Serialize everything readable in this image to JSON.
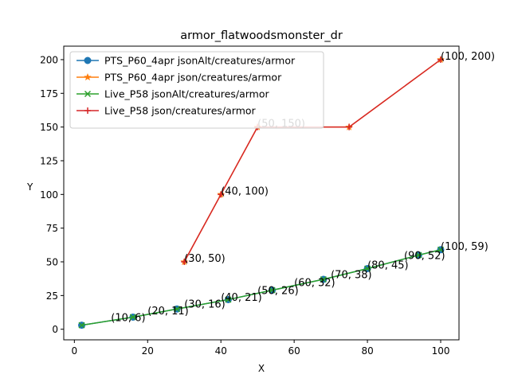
{
  "chart_data": {
    "type": "line",
    "title": "armor_flatwoodsmonster_dr",
    "xlabel": "X",
    "ylabel": "Y",
    "xlim": [
      -2.9,
      105
    ],
    "ylim": [
      -7.85,
      210
    ],
    "xticks": [
      0,
      20,
      40,
      60,
      80,
      100
    ],
    "yticks": [
      0,
      25,
      50,
      75,
      100,
      125,
      150,
      175,
      200
    ],
    "legend_position": "upper-left",
    "series": [
      {
        "name": "PTS_P60_4apr jsonAlt/creatures/armor",
        "color": "#1f77b4",
        "marker": "circle",
        "x": [
          2,
          16,
          28,
          42,
          54,
          68,
          80,
          94,
          100
        ],
        "y": [
          3,
          9,
          15,
          22,
          29,
          37,
          45,
          55,
          59
        ]
      },
      {
        "name": "PTS_P60_4apr json/creatures/armor",
        "color": "#ff7f0e",
        "marker": "star",
        "x": [
          30,
          40,
          50,
          75,
          100
        ],
        "y": [
          50,
          100,
          150,
          150,
          200
        ]
      },
      {
        "name": "Live_P58 jsonAlt/creatures/armor",
        "color": "#2ca02c",
        "marker": "x",
        "x": [
          2,
          16,
          28,
          42,
          54,
          68,
          80,
          94,
          100
        ],
        "y": [
          3,
          9,
          15,
          22,
          29,
          37,
          45,
          55,
          59
        ]
      },
      {
        "name": "Live_P58 json/creatures/armor",
        "color": "#d62728",
        "marker": "plus",
        "x": [
          30,
          40,
          50,
          75,
          100
        ],
        "y": [
          50,
          100,
          150,
          150,
          200
        ]
      }
    ],
    "annotations": [
      {
        "text": "(10, 6)",
        "x": 10,
        "y": 6
      },
      {
        "text": "(20, 11)",
        "x": 20,
        "y": 11
      },
      {
        "text": "(30, 16)",
        "x": 30,
        "y": 16
      },
      {
        "text": "(40, 21)",
        "x": 40,
        "y": 21
      },
      {
        "text": "(50, 26)",
        "x": 50,
        "y": 26
      },
      {
        "text": "(60, 32)",
        "x": 60,
        "y": 32
      },
      {
        "text": "(70, 38)",
        "x": 70,
        "y": 38
      },
      {
        "text": "(80, 45)",
        "x": 80,
        "y": 45
      },
      {
        "text": "(90, 52)",
        "x": 90,
        "y": 52
      },
      {
        "text": "(100, 59)",
        "x": 100,
        "y": 59
      },
      {
        "text": "(30, 50)",
        "x": 30,
        "y": 50
      },
      {
        "text": "(40, 100)",
        "x": 40,
        "y": 100
      },
      {
        "text": "(50, 150)",
        "x": 50,
        "y": 150
      },
      {
        "text": "(100, 200)",
        "x": 100,
        "y": 200
      }
    ]
  }
}
